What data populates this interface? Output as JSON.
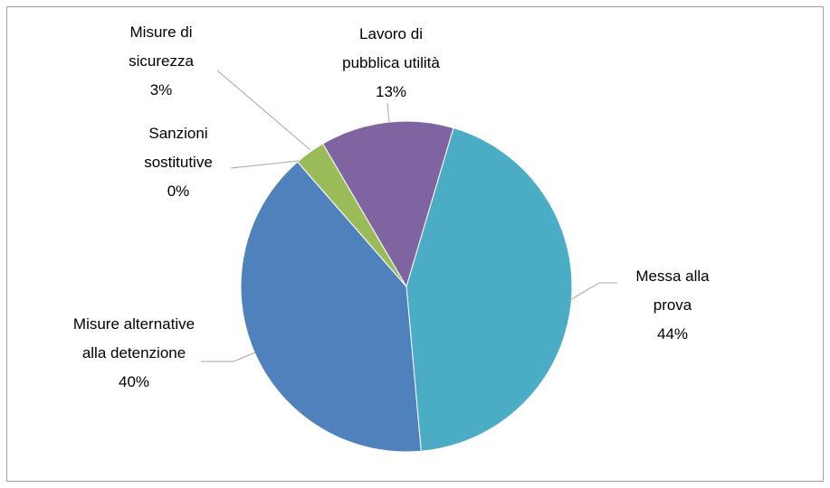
{
  "chart_data": {
    "type": "pie",
    "categories": [
      "Messa alla prova",
      "Misure alternative alla detenzione",
      "Sanzioni sostitutive",
      "Misure di sicurezza",
      "Lavoro di pubblica utilità"
    ],
    "values": [
      44,
      40,
      0,
      3,
      13
    ],
    "value_labels": [
      "44%",
      "40%",
      "0%",
      "3%",
      "13%"
    ],
    "colors": [
      "#4bacc6",
      "#4f81bd",
      "#c0504d",
      "#9bbb59",
      "#8064a2"
    ]
  }
}
